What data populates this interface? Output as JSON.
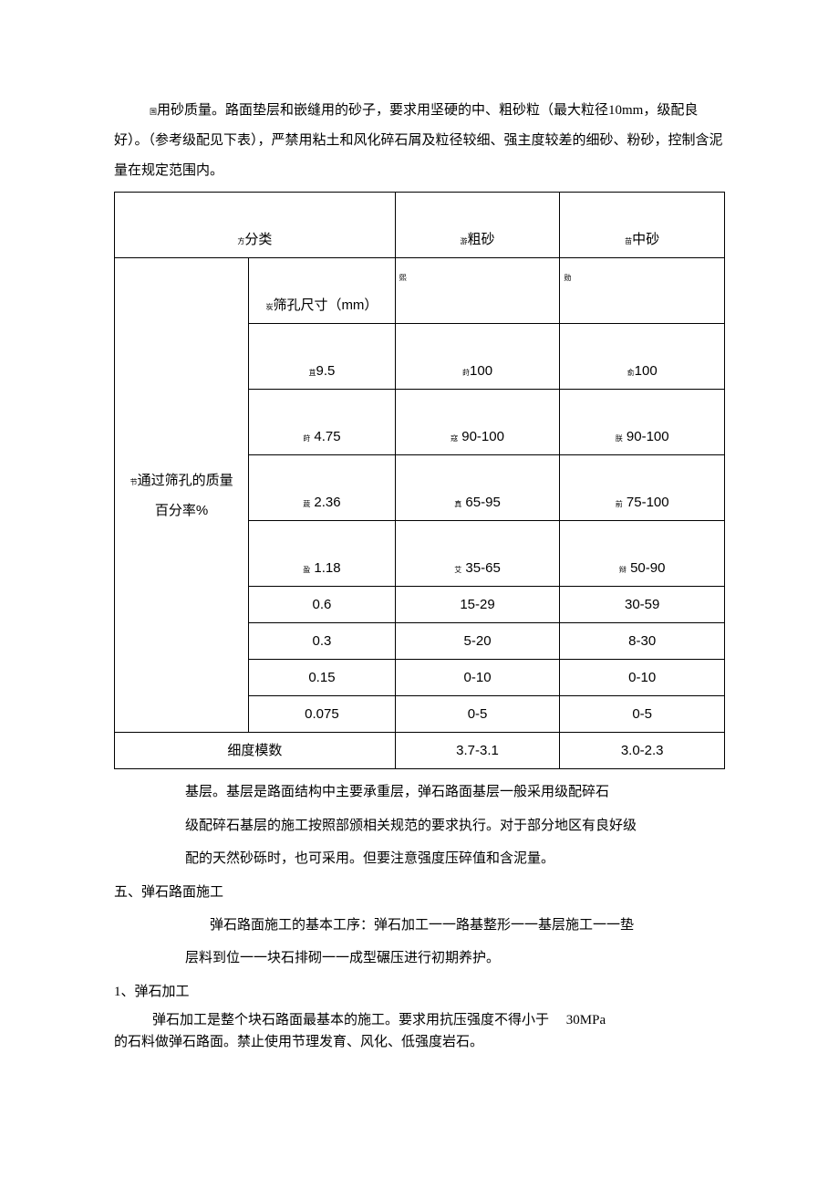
{
  "intro": {
    "marker": "国",
    "text": "用砂质量。路面垫层和嵌缝用的砂子，要求用坚硬的中、粗砂粒（最大粒径10mm，级配良好）。（参考级配见下表），严禁用粘土和风化碎石屑及粒径较细、强主度较差的细砂、粉砂，控制含泥量在规定范围内。"
  },
  "table": {
    "headers": {
      "category": {
        "marker": "方",
        "label": "分类"
      },
      "coarse": {
        "marker": "游",
        "label": "粗砂"
      },
      "medium": {
        "marker": "苗",
        "label": "中砂"
      }
    },
    "sieve_label": {
      "marker": "炭",
      "label": "筛孔尺寸（mm）"
    },
    "rowgroup_label": {
      "marker": "节",
      "label_line1": "通过筛孔的质量",
      "label_line2": "百分率%"
    },
    "empty_markers": {
      "coarse": "熙",
      "medium": "勋"
    },
    "sieve_rows": [
      {
        "marker_sieve": "苴",
        "sieve": "9.5",
        "marker_coarse": "莳",
        "coarse": "100",
        "marker_medium": "俞",
        "medium": "100",
        "tall": true
      },
      {
        "marker_sieve": "莳",
        "sieve": "4.75",
        "marker_coarse": "寇",
        "coarse": "90-100",
        "marker_medium": "朕",
        "medium": "90-100",
        "tall": true
      },
      {
        "marker_sieve": "蔬",
        "sieve": "2.36",
        "marker_coarse": "真",
        "coarse": "65-95",
        "marker_medium": "前",
        "medium": "75-100",
        "tall": true
      },
      {
        "marker_sieve": "盈",
        "sieve": "1.18",
        "marker_coarse": "艾",
        "coarse": "35-65",
        "marker_medium": "辩",
        "medium": "50-90",
        "tall": true
      },
      {
        "sieve": "0.6",
        "coarse": "15-29",
        "medium": "30-59"
      },
      {
        "sieve": "0.3",
        "coarse": "5-20",
        "medium": "8-30"
      },
      {
        "sieve": "0.15",
        "coarse": "0-10",
        "medium": "0-10"
      },
      {
        "sieve": "0.075",
        "coarse": "0-5",
        "medium": "0-5"
      }
    ],
    "fineness": {
      "label": "细度模数",
      "coarse": "3.7-3.1",
      "medium": "3.0-2.3"
    }
  },
  "base_layer": {
    "line1": "基层。基层是路面结构中主要承重层，弹石路面基层一般采用级配碎石",
    "line2": "级配碎石基层的施工按照部颁相关规范的要求执行。对于部分地区有良好级",
    "line3": "配的天然砂砾时，也可采用。但要注意强度压碎值和含泥量。"
  },
  "section5": {
    "heading": "五、弹石路面施工",
    "process_line1": "弹石路面施工的基本工序：弹石加工一一路基整形一一基层施工一一垫",
    "process_line2": "层料到位一一块石排砌一一成型碾压进行初期养护。"
  },
  "sub1": {
    "heading": "1、弹石加工",
    "body_line1": "弹石加工是整个块石路面最基本的施工。要求用抗压强度不得小于",
    "body_value": "30MPa",
    "body_line2": "的石料做弹石路面。禁止使用节理发育、风化、低强度岩石。"
  },
  "styling": {
    "background_color": "#ffffff",
    "text_color": "#000000",
    "border_color": "#000000",
    "base_font_size": 15,
    "marker_font_size": 8,
    "font_family": "SimSun"
  }
}
